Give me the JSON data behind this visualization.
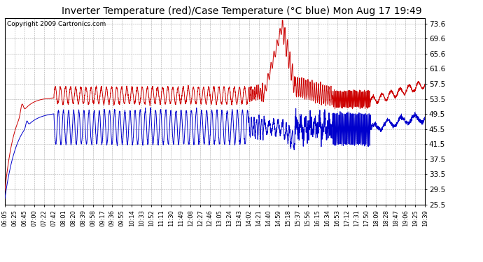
{
  "title": "Inverter Temperature (red)/Case Temperature (°C blue) Mon Aug 17 19:49",
  "copyright": "Copyright 2009 Cartronics.com",
  "y_ticks": [
    25.5,
    29.5,
    33.5,
    37.5,
    41.5,
    45.5,
    49.5,
    53.5,
    57.5,
    61.6,
    65.6,
    69.6,
    73.6
  ],
  "y_min": 25.5,
  "y_max": 75.0,
  "x_labels": [
    "06:05",
    "06:25",
    "06:45",
    "07:00",
    "07:22",
    "07:42",
    "08:01",
    "08:20",
    "08:39",
    "08:58",
    "09:17",
    "09:36",
    "09:55",
    "10:14",
    "10:33",
    "10:52",
    "11:11",
    "11:30",
    "11:49",
    "12:08",
    "12:27",
    "12:46",
    "13:05",
    "13:24",
    "13:43",
    "14:02",
    "14:21",
    "14:40",
    "14:59",
    "15:18",
    "15:37",
    "15:56",
    "16:15",
    "16:34",
    "16:53",
    "17:12",
    "17:31",
    "17:50",
    "18:09",
    "18:28",
    "18:47",
    "19:06",
    "19:25",
    "19:39"
  ],
  "red_color": "#cc0000",
  "blue_color": "#0000cc",
  "bg_color": "#ffffff",
  "grid_color": "#aaaaaa",
  "title_fontsize": 10,
  "copyright_fontsize": 6.5
}
